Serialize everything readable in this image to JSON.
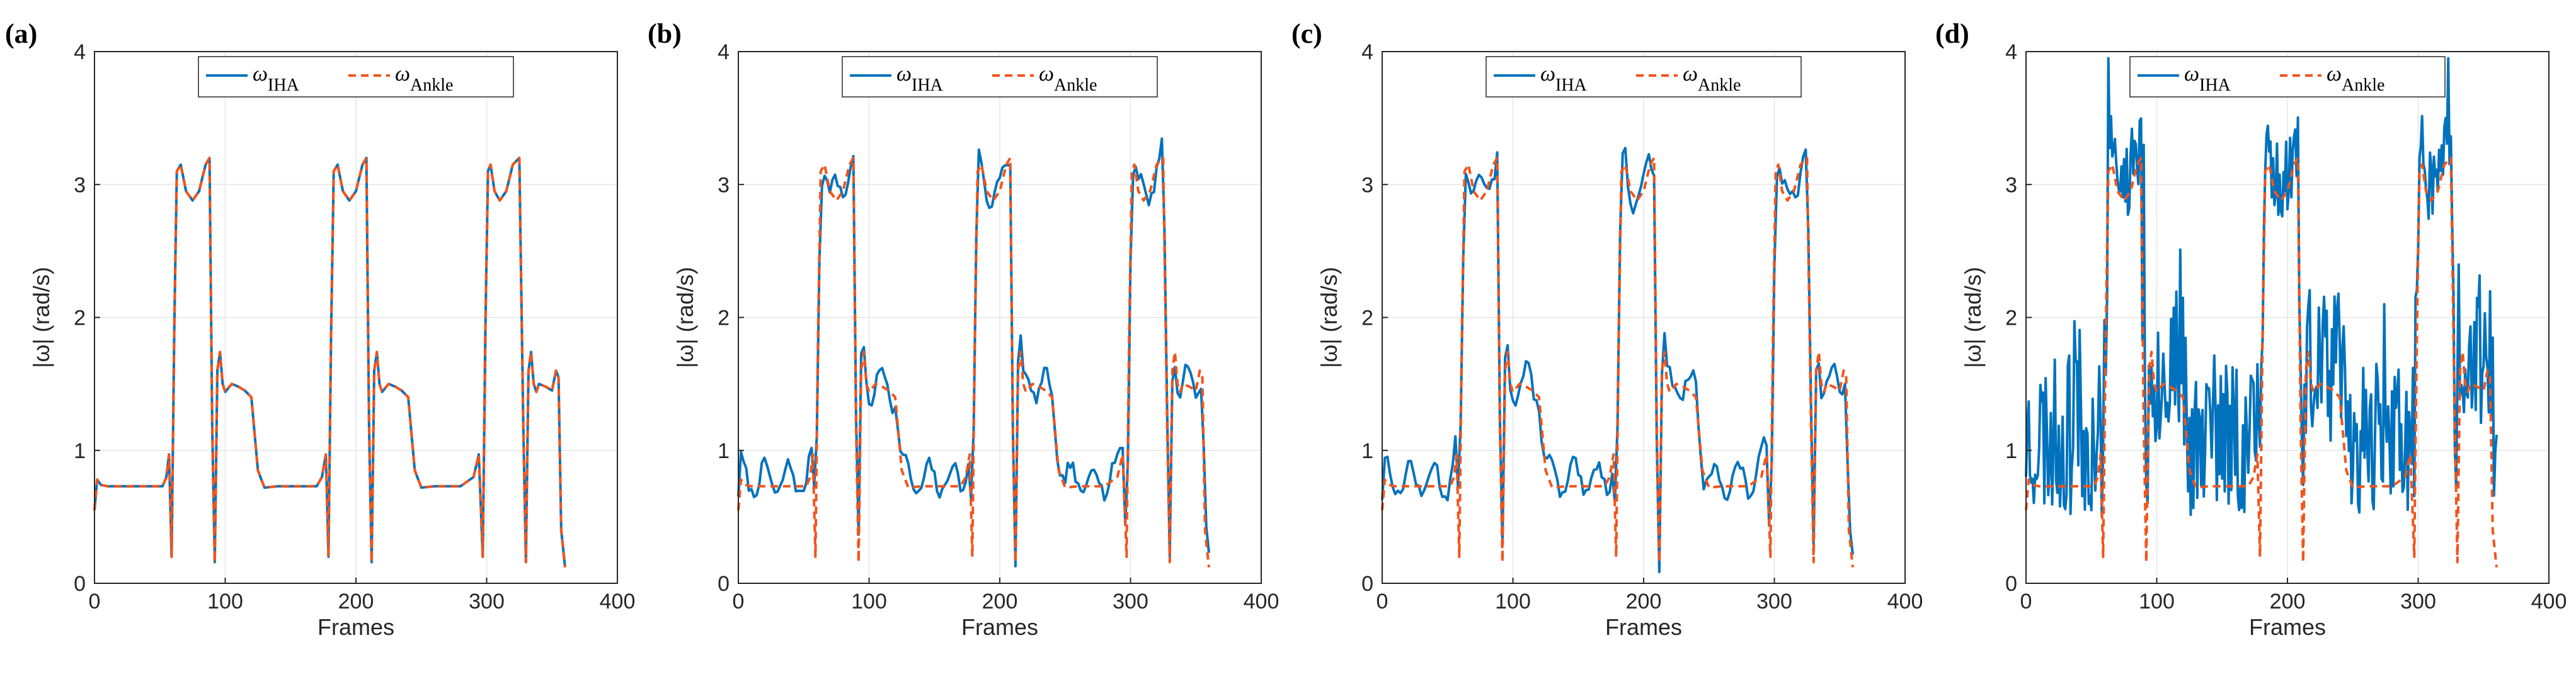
{
  "colors": {
    "ihaLine": "#0072BD",
    "ankleLine": "#F2541B",
    "grid": "#e6e6e6",
    "axis": "#262626"
  },
  "chart_data": [
    {
      "type": "line",
      "panel_label": "(a)",
      "xlabel": "Frames",
      "ylabel": "|ω| (rad/s)",
      "xlim": [
        0,
        400
      ],
      "ylim": [
        0,
        4
      ],
      "xticks": [
        "0",
        "100",
        "200",
        "300",
        "400"
      ],
      "yticks": [
        "0",
        "1",
        "2",
        "3",
        "4"
      ],
      "grid": true,
      "legend": {
        "position": "top",
        "entries": [
          {
            "symbol": "ω",
            "sub": "IHA",
            "style": "solid"
          },
          {
            "symbol": "ω",
            "sub": "Ankle",
            "style": "dashed"
          }
        ]
      },
      "series": [
        {
          "name": "ω_IHA",
          "noise": 0,
          "seed": 1
        },
        {
          "name": "ω_Ankle"
        }
      ]
    },
    {
      "type": "line",
      "panel_label": "(b)",
      "xlabel": "Frames",
      "ylabel": "|ω| (rad/s)",
      "xlim": [
        0,
        400
      ],
      "ylim": [
        0,
        4
      ],
      "xticks": [
        "0",
        "100",
        "200",
        "300",
        "400"
      ],
      "yticks": [
        "0",
        "1",
        "2",
        "3",
        "4"
      ],
      "grid": true,
      "legend": {
        "position": "top",
        "entries": [
          {
            "symbol": "ω",
            "sub": "IHA",
            "style": "solid"
          },
          {
            "symbol": "ω",
            "sub": "Ankle",
            "style": "dashed"
          }
        ]
      },
      "series": [
        {
          "name": "ω_IHA",
          "noise": 0.12,
          "seed": 7
        },
        {
          "name": "ω_Ankle"
        }
      ]
    },
    {
      "type": "line",
      "panel_label": "(c)",
      "xlabel": "Frames",
      "ylabel": "|ω| (rad/s)",
      "xlim": [
        0,
        400
      ],
      "ylim": [
        0,
        4
      ],
      "xticks": [
        "0",
        "100",
        "200",
        "300",
        "400"
      ],
      "yticks": [
        "0",
        "1",
        "2",
        "3",
        "4"
      ],
      "grid": true,
      "legend": {
        "position": "top",
        "entries": [
          {
            "symbol": "ω",
            "sub": "IHA",
            "style": "solid"
          },
          {
            "symbol": "ω",
            "sub": "Ankle",
            "style": "dashed"
          }
        ]
      },
      "series": [
        {
          "name": "ω_IHA",
          "noise": 0.13,
          "seed": 13
        },
        {
          "name": "ω_Ankle"
        }
      ]
    },
    {
      "type": "line",
      "panel_label": "(d)",
      "xlabel": "Frames",
      "ylabel": "|ω| (rad/s)",
      "xlim": [
        0,
        400
      ],
      "ylim": [
        0,
        4
      ],
      "xticks": [
        "0",
        "100",
        "200",
        "300",
        "400"
      ],
      "yticks": [
        "0",
        "1",
        "2",
        "3",
        "4"
      ],
      "grid": true,
      "legend": {
        "position": "top",
        "entries": [
          {
            "symbol": "ω",
            "sub": "IHA",
            "style": "solid"
          },
          {
            "symbol": "ω",
            "sub": "Ankle",
            "style": "dashed"
          }
        ]
      },
      "series": [
        {
          "name": "ω_IHA",
          "noise": 0.55,
          "seed": 23
        },
        {
          "name": "ω_Ankle"
        }
      ]
    }
  ],
  "ankle_profile": {
    "frames": [
      0,
      2,
      5,
      10,
      20,
      40,
      52,
      55,
      57,
      59,
      61,
      63,
      66,
      70,
      75,
      80,
      85,
      88,
      90,
      92,
      94,
      96,
      98,
      100,
      105,
      110,
      115,
      120,
      125,
      130,
      140,
      150,
      160,
      170,
      174,
      177,
      179,
      181,
      183,
      186,
      190,
      195,
      200,
      205,
      208,
      210,
      212,
      214,
      216,
      218,
      220,
      225,
      230,
      235,
      240,
      245,
      250,
      260,
      270,
      280,
      290,
      294,
      297,
      299,
      301,
      303,
      306,
      310,
      315,
      320,
      325,
      328,
      330,
      332,
      334,
      336,
      338,
      340,
      345,
      350,
      353,
      355,
      357,
      360
    ],
    "values": [
      0.55,
      0.78,
      0.74,
      0.73,
      0.73,
      0.73,
      0.73,
      0.8,
      0.97,
      0.2,
      1.9,
      3.1,
      3.15,
      2.95,
      2.88,
      2.95,
      3.15,
      3.2,
      1.2,
      0.16,
      1.6,
      1.74,
      1.5,
      1.44,
      1.5,
      1.48,
      1.45,
      1.4,
      0.85,
      0.72,
      0.73,
      0.73,
      0.73,
      0.73,
      0.8,
      0.97,
      0.2,
      1.9,
      3.1,
      3.15,
      2.95,
      2.88,
      2.95,
      3.15,
      3.2,
      1.2,
      0.16,
      1.6,
      1.74,
      1.5,
      1.44,
      1.5,
      1.48,
      1.45,
      1.4,
      0.85,
      0.72,
      0.73,
      0.73,
      0.73,
      0.8,
      0.97,
      0.2,
      1.9,
      3.1,
      3.15,
      2.95,
      2.88,
      2.95,
      3.15,
      3.2,
      1.2,
      0.16,
      1.6,
      1.74,
      1.5,
      1.44,
      1.5,
      1.48,
      1.45,
      1.6,
      1.55,
      0.4,
      0.12
    ]
  }
}
